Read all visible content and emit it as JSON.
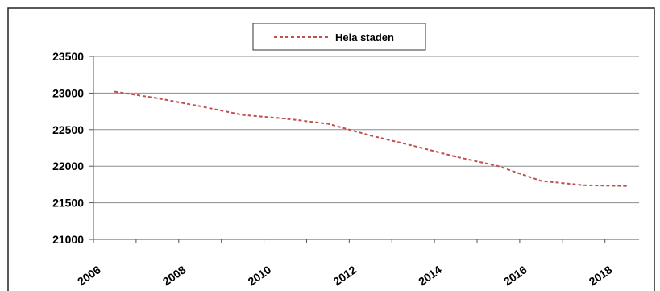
{
  "chart_data": {
    "type": "line",
    "series": [
      {
        "name": "Hela staden",
        "color": "#c0504d",
        "style": "dashed",
        "x": [
          2006.5,
          2007.5,
          2008.5,
          2009.5,
          2010.5,
          2011.5,
          2012.5,
          2013.5,
          2014.5,
          2015.5,
          2016.5,
          2017.5,
          2018.5
        ],
        "values": [
          23020,
          22930,
          22820,
          22700,
          22650,
          22580,
          22420,
          22280,
          22130,
          22000,
          21800,
          21740,
          21730
        ]
      }
    ],
    "y_ticks": [
      "21000",
      "21500",
      "22000",
      "22500",
      "23000",
      "23500"
    ],
    "y_tick_values": [
      21000,
      21500,
      22000,
      22500,
      23000,
      23500
    ],
    "x_ticks": [
      "2006",
      "2008",
      "2010",
      "2012",
      "2014",
      "2016",
      "2018"
    ],
    "x_tick_values": [
      2006,
      2008,
      2010,
      2012,
      2014,
      2016,
      2018
    ],
    "xlim": [
      2006,
      2018.8
    ],
    "ylim": [
      21000,
      23500
    ],
    "grid": true,
    "legend_position": "top-center",
    "title": "",
    "xlabel": "",
    "ylabel": ""
  }
}
